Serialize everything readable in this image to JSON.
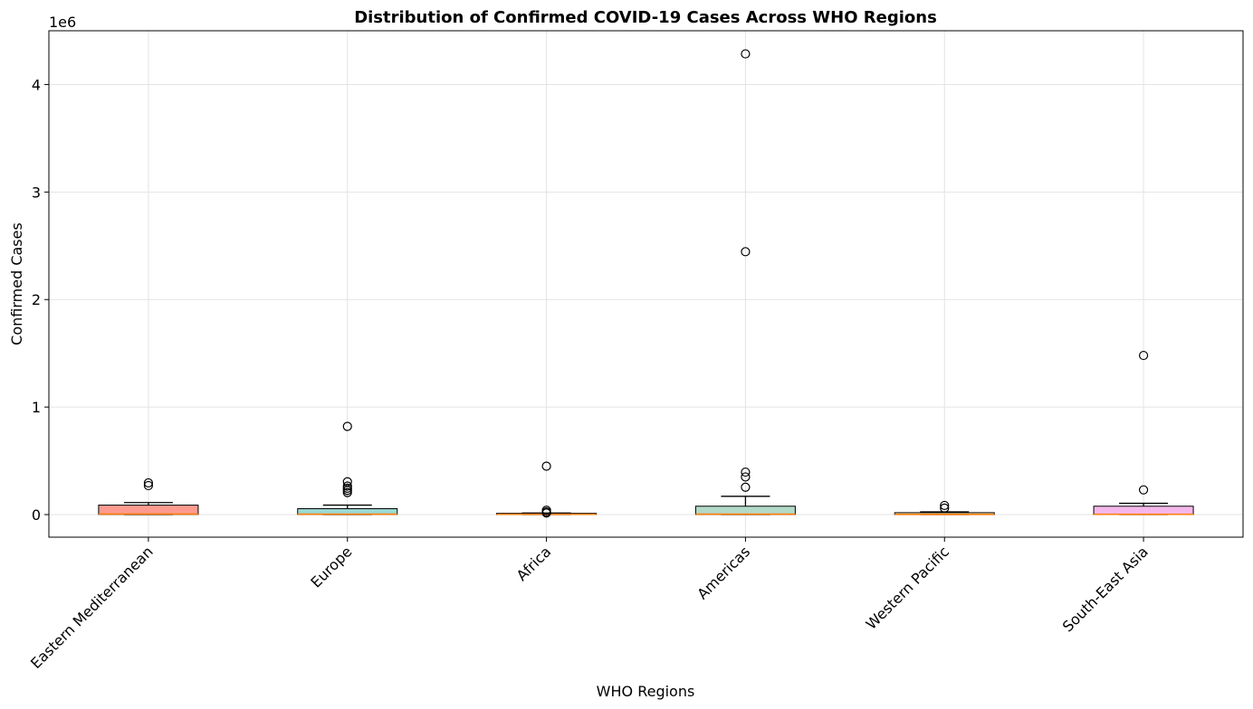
{
  "chart_data": {
    "type": "box",
    "title": "Distribution of Confirmed COVID-19 Cases Across WHO Regions",
    "xlabel": "WHO Regions",
    "ylabel": "Confirmed Cases",
    "y_offset_label": "1e6",
    "ylim": [
      -210000,
      4500000
    ],
    "yticks": [
      0,
      1000000,
      2000000,
      3000000,
      4000000
    ],
    "ytick_labels": [
      "0",
      "1",
      "2",
      "3",
      "4"
    ],
    "grid": true,
    "categories": [
      "Eastern Mediterranean",
      "Europe",
      "Africa",
      "Americas",
      "Western Pacific",
      "South-East Asia"
    ],
    "boxes": [
      {
        "name": "Eastern Mediterranean",
        "color": "#ff9b8e",
        "whisker_low": 0,
        "q1": 1500,
        "median": 5000,
        "q3": 88000,
        "whisker_high": 112000,
        "outliers": [
          270000,
          295000
        ]
      },
      {
        "name": "Europe",
        "color": "#9bd9d3",
        "whisker_low": 0,
        "q1": 1500,
        "median": 4000,
        "q3": 55000,
        "whisker_high": 88000,
        "outliers": [
          205000,
          225000,
          245000,
          265000,
          305000,
          820000
        ]
      },
      {
        "name": "Africa",
        "color": "#a9dcef",
        "whisker_low": 0,
        "q1": 1000,
        "median": 3000,
        "q3": 12000,
        "whisker_high": 15000,
        "outliers": [
          15000,
          25000,
          40000,
          450000
        ]
      },
      {
        "name": "Americas",
        "color": "#b3d9c7",
        "whisker_low": 0,
        "q1": 1000,
        "median": 4000,
        "q3": 78000,
        "whisker_high": 170000,
        "outliers": [
          255000,
          350000,
          395000,
          2445000,
          4285000
        ]
      },
      {
        "name": "Western Pacific",
        "color": "#f6e2a6",
        "whisker_low": 0,
        "q1": 800,
        "median": 2000,
        "q3": 18000,
        "whisker_high": 25000,
        "outliers": [
          60000,
          85000
        ]
      },
      {
        "name": "South-East Asia",
        "color": "#f4b7ec",
        "whisker_low": 0,
        "q1": 1000,
        "median": 3000,
        "q3": 78000,
        "whisker_high": 105000,
        "outliers": [
          230000,
          1480000
        ]
      }
    ]
  }
}
